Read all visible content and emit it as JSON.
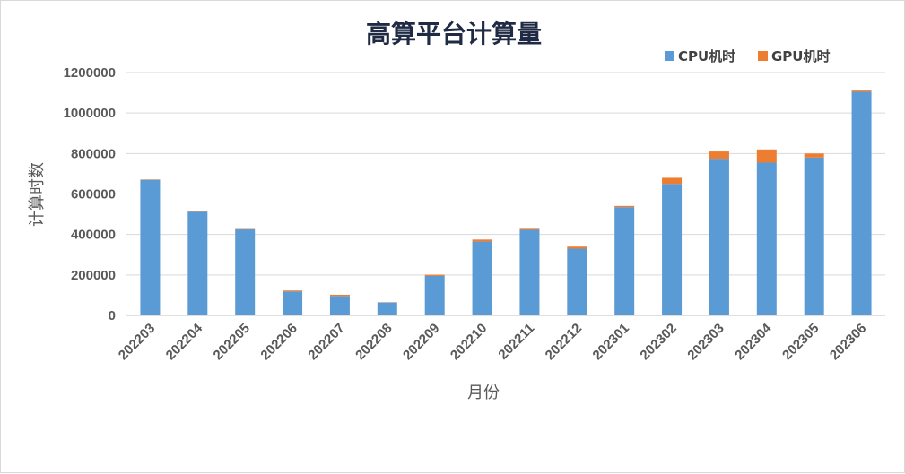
{
  "chart_data": {
    "type": "bar",
    "stacked": true,
    "title": "高算平台计算量",
    "xlabel": "月份",
    "ylabel": "计算时数",
    "ylim": [
      0,
      1200000
    ],
    "yticks": [
      "0",
      "200000",
      "400000",
      "600000",
      "800000",
      "1000000",
      "1200000"
    ],
    "categories": [
      "202203",
      "202204",
      "202205",
      "202206",
      "202207",
      "202208",
      "202209",
      "202210",
      "202211",
      "202212",
      "202301",
      "202302",
      "202303",
      "202304",
      "202305",
      "202306"
    ],
    "series": [
      {
        "name": "CPU机时",
        "color": "#5b9bd5",
        "values": [
          670000,
          512000,
          425000,
          118000,
          96000,
          64000,
          195000,
          365000,
          423000,
          330000,
          535000,
          650000,
          770000,
          755000,
          780000,
          1105000
        ]
      },
      {
        "name": "GPU机时",
        "color": "#ed7d31",
        "values": [
          2000,
          5000,
          2000,
          5000,
          6000,
          1000,
          6000,
          10000,
          5000,
          10000,
          6000,
          30000,
          40000,
          65000,
          20000,
          6000
        ]
      }
    ],
    "grid": true,
    "legend": "top-right"
  }
}
